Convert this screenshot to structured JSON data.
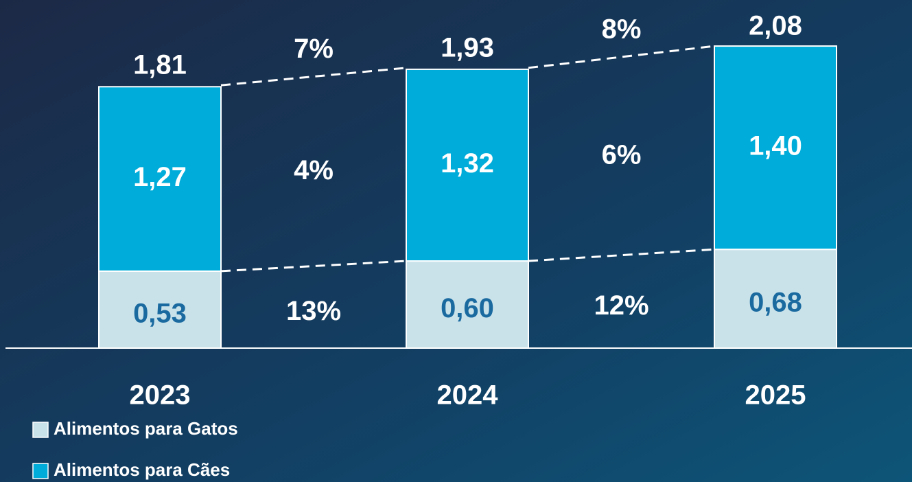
{
  "chart_data": {
    "type": "stacked_bar",
    "categories": [
      "2023",
      "2024",
      "2025"
    ],
    "series": [
      {
        "name": "Alimentos para Gatos",
        "color": "#c9e2ea",
        "label_color": "#1a6aa0",
        "values": [
          0.53,
          0.6,
          0.68
        ],
        "value_labels": [
          "0,53",
          "0,60",
          "0,68"
        ],
        "growth_values": [
          13,
          12
        ],
        "growth_labels": [
          "13%",
          "12%"
        ]
      },
      {
        "name": "Alimentos para Cães",
        "color": "#00acd9",
        "label_color": "#ffffff",
        "values": [
          1.27,
          1.32,
          1.4
        ],
        "value_labels": [
          "1,27",
          "1,32",
          "1,40"
        ],
        "growth_values": [
          4,
          6
        ],
        "growth_labels": [
          "4%",
          "6%"
        ]
      }
    ],
    "totals": [
      1.81,
      1.93,
      2.08
    ],
    "total_labels": [
      "1,81",
      "1,93",
      "2,08"
    ],
    "total_growth_values": [
      7,
      8
    ],
    "total_growth_labels": [
      "7%",
      "8%"
    ]
  }
}
